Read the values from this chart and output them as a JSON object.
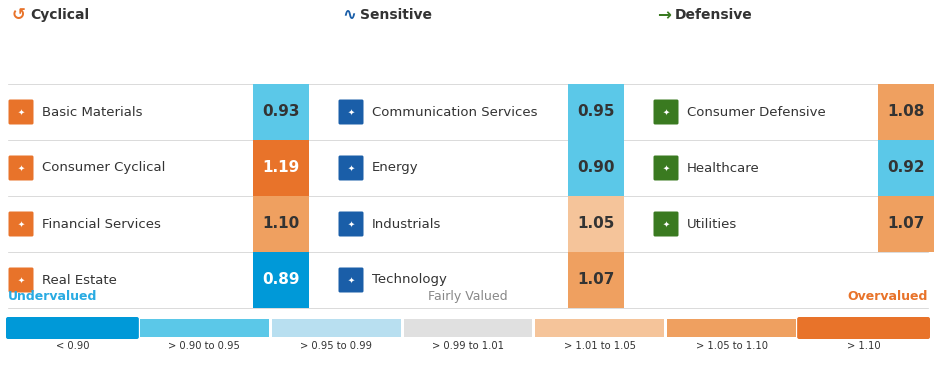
{
  "categories": {
    "cyclical": [
      {
        "name": "Basic Materials",
        "value": 0.93
      },
      {
        "name": "Consumer Cyclical",
        "value": 1.19
      },
      {
        "name": "Financial Services",
        "value": 1.1
      },
      {
        "name": "Real Estate",
        "value": 0.89
      }
    ],
    "sensitive": [
      {
        "name": "Communication Services",
        "value": 0.95
      },
      {
        "name": "Energy",
        "value": 0.9
      },
      {
        "name": "Industrials",
        "value": 1.05
      },
      {
        "name": "Technology",
        "value": 1.07
      }
    ],
    "defensive": [
      {
        "name": "Consumer Defensive",
        "value": 1.08
      },
      {
        "name": "Healthcare",
        "value": 0.92
      },
      {
        "name": "Utilities",
        "value": 1.07
      }
    ]
  },
  "legend_bar": {
    "segments": [
      {
        "label": "< 0.90",
        "color": "#0099D8"
      },
      {
        "label": "> 0.90 to 0.95",
        "color": "#5BC8E8"
      },
      {
        "label": "> 0.95 to 0.99",
        "color": "#B8DFF0"
      },
      {
        "label": "> 0.99 to 1.01",
        "color": "#E0E0E0"
      },
      {
        "label": "> 1.01 to 1.05",
        "color": "#F5C49A"
      },
      {
        "label": "> 1.05 to 1.10",
        "color": "#EFA060"
      },
      {
        "label": "> 1.10",
        "color": "#E8732A"
      }
    ]
  },
  "header_colors": {
    "cyclical": "#E8732A",
    "sensitive": "#1A5EA8",
    "defensive": "#3A7A20"
  },
  "icon_bg": {
    "cyclical": "#E8732A",
    "sensitive": "#1A5EA8",
    "defensive": "#3A7A20"
  },
  "separator": "#CCCCCC",
  "text_dark": "#333333",
  "undervalued_color": "#29ABE2",
  "overvalued_color": "#E8732A",
  "fairly_color": "#888888",
  "fig_w": 9.36,
  "fig_h": 3.86,
  "dpi": 100
}
